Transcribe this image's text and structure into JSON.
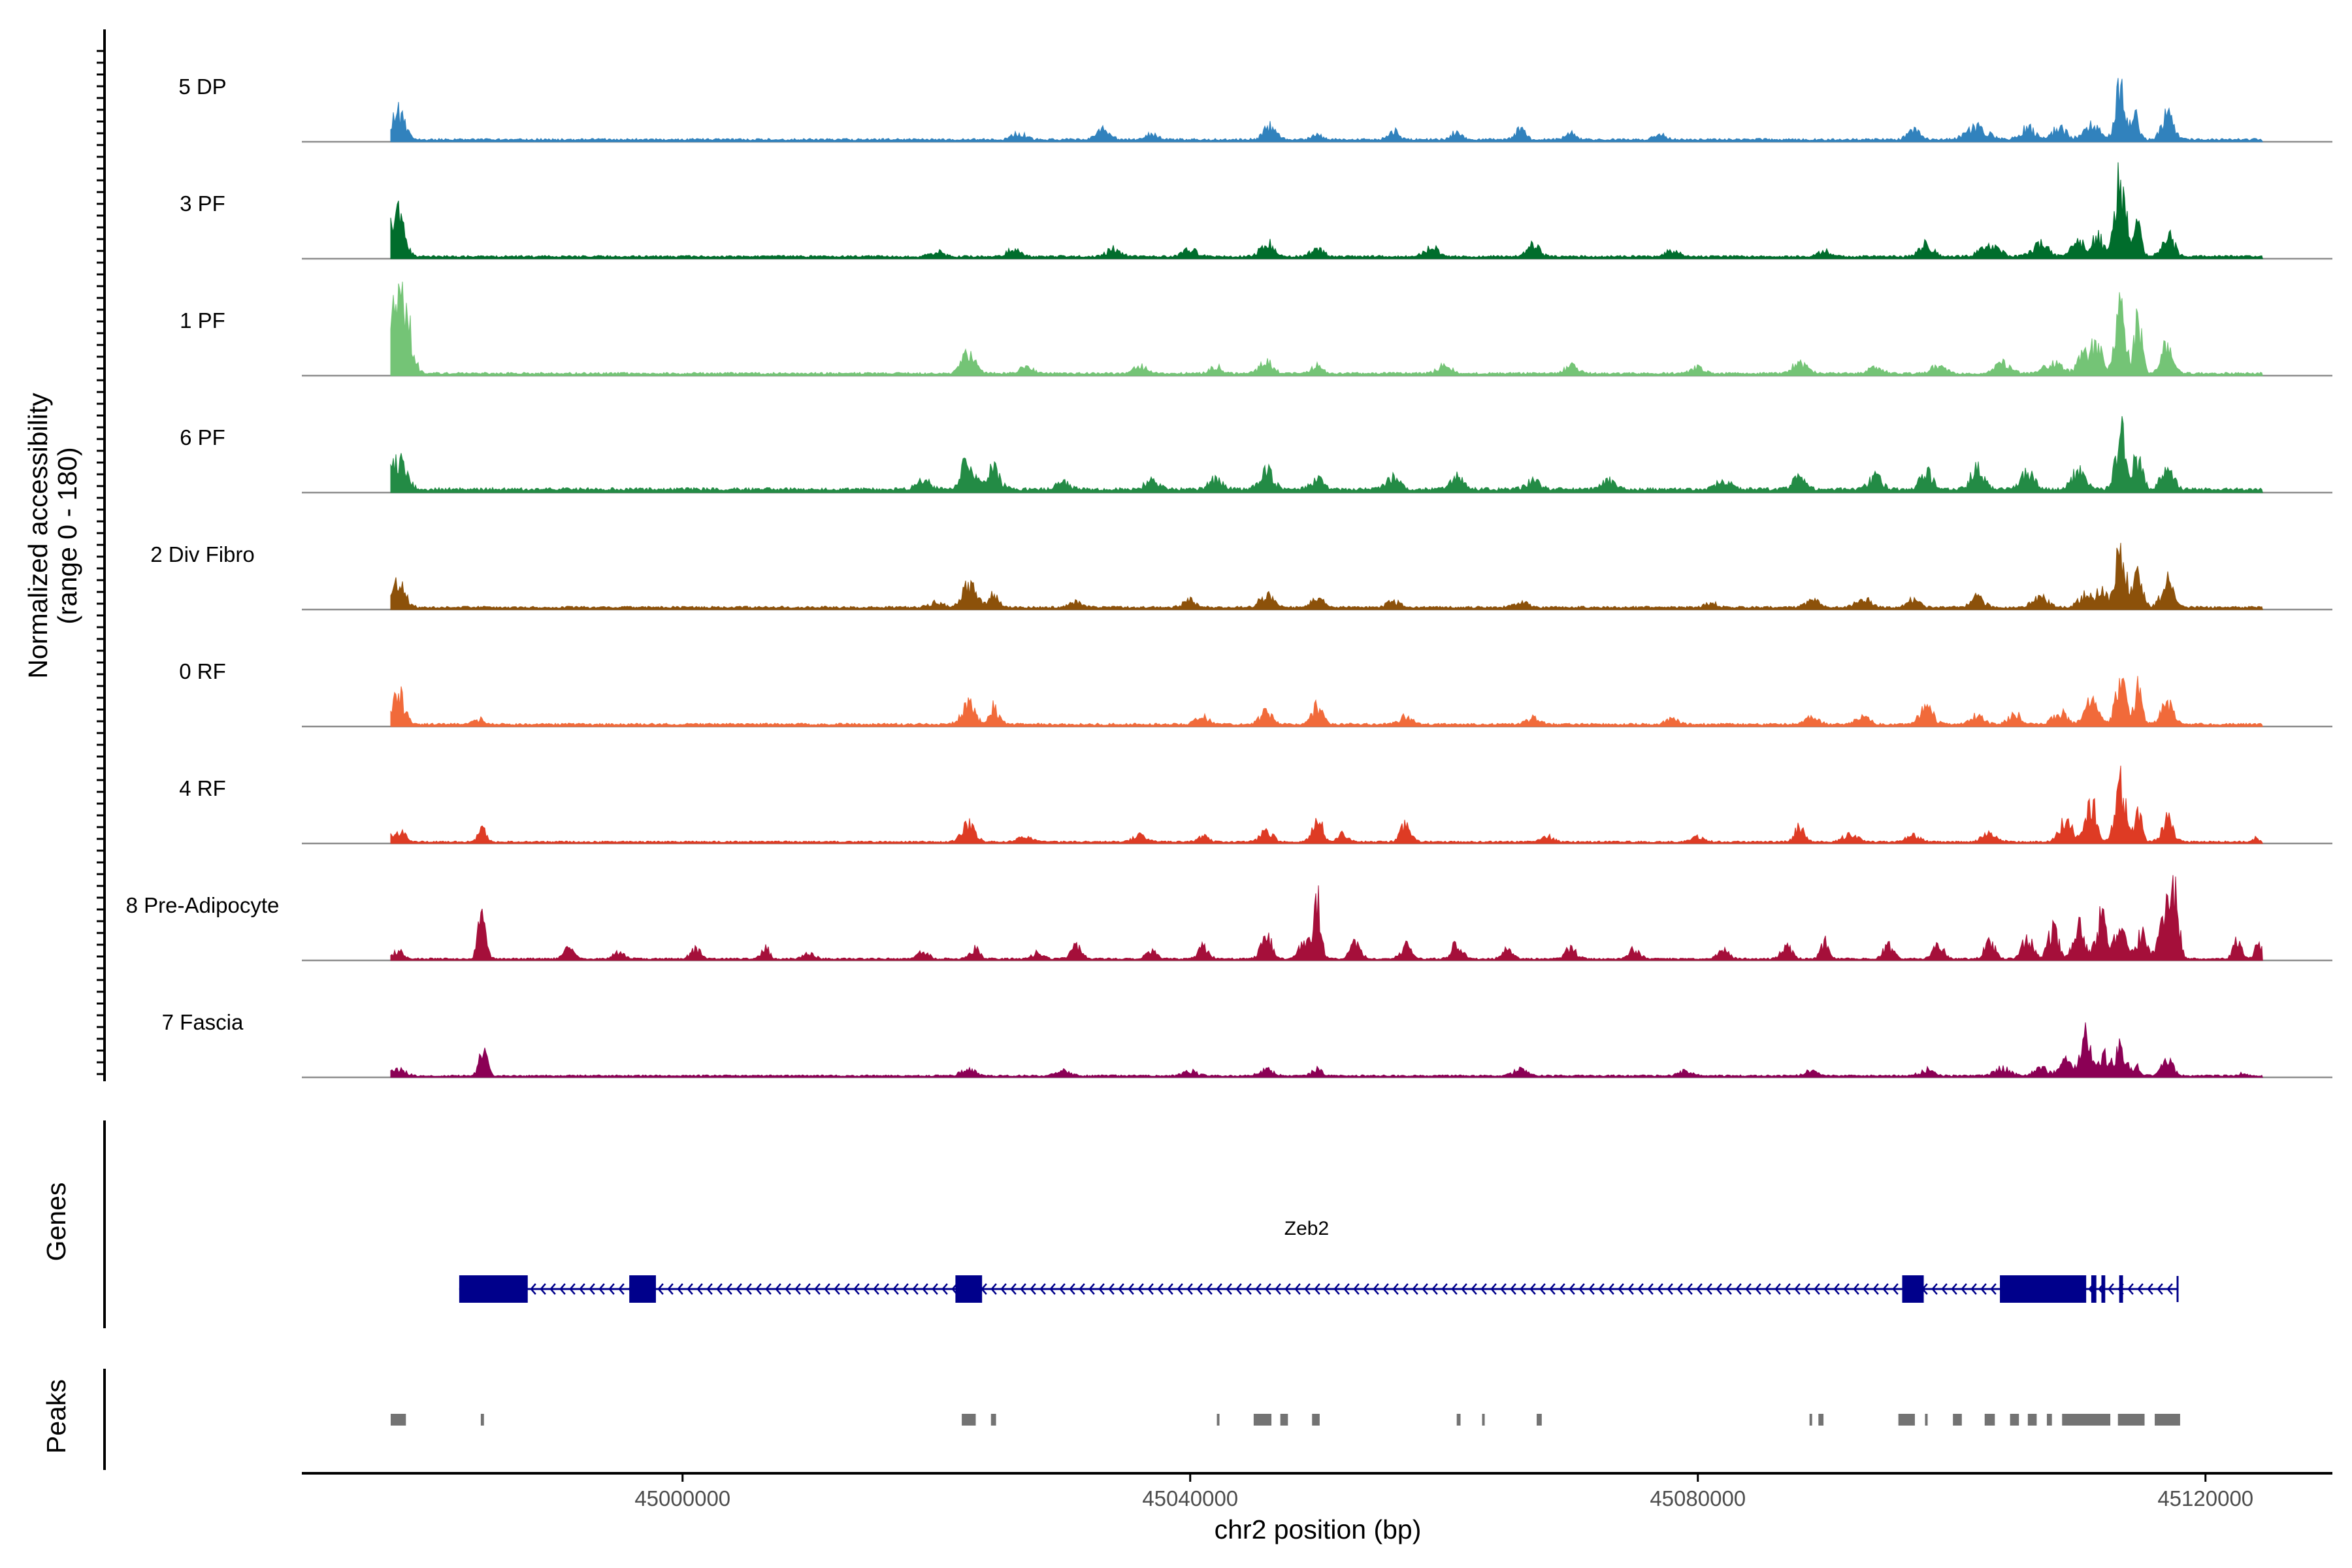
{
  "chart_data": {
    "type": "area",
    "title": "",
    "ylabel": "Normalized accessibility",
    "ylabel_range": "(range 0 - 180)",
    "xlabel": "chr2 position (bp)",
    "xlim": [
      44970000,
      45130000
    ],
    "xticks": [
      45000000,
      45040000,
      45080000,
      45120000
    ],
    "xtick_labels": [
      "45000000",
      "45040000",
      "45080000",
      "45120000"
    ],
    "track_range_end": 45124500,
    "tracks": [
      {
        "name": "5 DP",
        "color": "#3182BD",
        "base": 2,
        "peaks": [
          [
            44977600,
            22,
            500
          ],
          [
            45026500,
            5,
            500
          ],
          [
            45033200,
            8,
            500
          ],
          [
            45037000,
            5,
            400
          ],
          [
            45046300,
            11,
            500
          ],
          [
            45050000,
            5,
            400
          ],
          [
            45056000,
            7,
            400
          ],
          [
            45061000,
            6,
            400
          ],
          [
            45066000,
            8,
            400
          ],
          [
            45070000,
            5,
            400
          ],
          [
            45077000,
            5,
            400
          ],
          [
            45097000,
            7,
            500
          ],
          [
            45102000,
            10,
            800
          ],
          [
            45106000,
            9,
            600
          ],
          [
            45108500,
            10,
            500
          ],
          [
            45111000,
            12,
            600
          ],
          [
            45113300,
            40,
            400
          ],
          [
            45114500,
            18,
            300
          ],
          [
            45117000,
            20,
            450
          ]
        ]
      },
      {
        "name": "3 PF",
        "color": "#006D2C",
        "base": 2,
        "peaks": [
          [
            44977500,
            38,
            500
          ],
          [
            45020000,
            4,
            500
          ],
          [
            45026000,
            6,
            500
          ],
          [
            45034000,
            7,
            500
          ],
          [
            45040000,
            6,
            500
          ],
          [
            45046000,
            12,
            500
          ],
          [
            45050000,
            6,
            500
          ],
          [
            45059000,
            8,
            500
          ],
          [
            45067000,
            9,
            500
          ],
          [
            45078000,
            5,
            500
          ],
          [
            45090000,
            5,
            500
          ],
          [
            45098000,
            10,
            500
          ],
          [
            45103000,
            10,
            700
          ],
          [
            45107000,
            10,
            600
          ],
          [
            45110000,
            14,
            500
          ],
          [
            45111500,
            16,
            400
          ],
          [
            45113300,
            63,
            400
          ],
          [
            45114600,
            35,
            300
          ],
          [
            45117000,
            22,
            450
          ]
        ]
      },
      {
        "name": "1 PF",
        "color": "#74C476",
        "base": 2,
        "peaks": [
          [
            44977600,
            64,
            500
          ],
          [
            44978500,
            24,
            400
          ],
          [
            45022500,
            18,
            500
          ],
          [
            45027000,
            6,
            500
          ],
          [
            45036000,
            6,
            500
          ],
          [
            45042000,
            6,
            400
          ],
          [
            45046000,
            9,
            500
          ],
          [
            45050000,
            6,
            400
          ],
          [
            45060000,
            7,
            500
          ],
          [
            45070000,
            6,
            500
          ],
          [
            45080000,
            5,
            500
          ],
          [
            45088000,
            8,
            600
          ],
          [
            45094000,
            6,
            500
          ],
          [
            45099000,
            7,
            500
          ],
          [
            45104000,
            8,
            600
          ],
          [
            45108000,
            10,
            600
          ],
          [
            45110500,
            16,
            500
          ],
          [
            45111500,
            22,
            400
          ],
          [
            45113300,
            50,
            400
          ],
          [
            45114700,
            42,
            300
          ],
          [
            45117000,
            24,
            450
          ]
        ]
      },
      {
        "name": "6 PF",
        "color": "#238B45",
        "base": 3,
        "peaks": [
          [
            44977600,
            22,
            600
          ],
          [
            45019000,
            8,
            500
          ],
          [
            45022500,
            24,
            500
          ],
          [
            45024500,
            16,
            500
          ],
          [
            45030000,
            6,
            500
          ],
          [
            45037000,
            8,
            500
          ],
          [
            45042000,
            8,
            500
          ],
          [
            45046000,
            16,
            500
          ],
          [
            45050000,
            8,
            500
          ],
          [
            45056000,
            10,
            500
          ],
          [
            45061000,
            10,
            500
          ],
          [
            45067000,
            8,
            500
          ],
          [
            45073000,
            8,
            500
          ],
          [
            45082000,
            8,
            500
          ],
          [
            45088000,
            9,
            500
          ],
          [
            45094000,
            10,
            500
          ],
          [
            45098000,
            14,
            500
          ],
          [
            45102000,
            16,
            500
          ],
          [
            45106000,
            14,
            500
          ],
          [
            45110000,
            16,
            500
          ],
          [
            45113300,
            45,
            400
          ],
          [
            45114600,
            24,
            400
          ],
          [
            45117000,
            20,
            450
          ]
        ]
      },
      {
        "name": "2 Div Fibro",
        "color": "#8C510A",
        "base": 2,
        "peaks": [
          [
            44977600,
            20,
            500
          ],
          [
            45020000,
            4,
            500
          ],
          [
            45022600,
            20,
            500
          ],
          [
            45024500,
            10,
            400
          ],
          [
            45031000,
            4,
            500
          ],
          [
            45040000,
            6,
            500
          ],
          [
            45046000,
            10,
            500
          ],
          [
            45050000,
            10,
            400
          ],
          [
            45056000,
            5,
            500
          ],
          [
            45066000,
            5,
            500
          ],
          [
            45081000,
            4,
            500
          ],
          [
            45089000,
            6,
            500
          ],
          [
            45093000,
            8,
            500
          ],
          [
            45097000,
            6,
            500
          ],
          [
            45102000,
            8,
            500
          ],
          [
            45107000,
            8,
            600
          ],
          [
            45110500,
            10,
            500
          ],
          [
            45111800,
            14,
            400
          ],
          [
            45113300,
            45,
            400
          ],
          [
            45114600,
            24,
            400
          ],
          [
            45117000,
            22,
            450
          ]
        ]
      },
      {
        "name": "0 RF",
        "color": "#F16A3A",
        "base": 2,
        "peaks": [
          [
            44977600,
            24,
            500
          ],
          [
            44984000,
            4,
            400
          ],
          [
            45022500,
            16,
            500
          ],
          [
            45024500,
            14,
            400
          ],
          [
            45041000,
            6,
            500
          ],
          [
            45046000,
            10,
            500
          ],
          [
            45050000,
            14,
            400
          ],
          [
            45057000,
            6,
            500
          ],
          [
            45067000,
            5,
            500
          ],
          [
            45078000,
            4,
            500
          ],
          [
            45089000,
            6,
            500
          ],
          [
            45093000,
            6,
            500
          ],
          [
            45098000,
            14,
            500
          ],
          [
            45102000,
            7,
            500
          ],
          [
            45105000,
            8,
            500
          ],
          [
            45108500,
            10,
            500
          ],
          [
            45111000,
            18,
            500
          ],
          [
            45113300,
            34,
            400
          ],
          [
            45114700,
            34,
            300
          ],
          [
            45117000,
            18,
            450
          ]
        ]
      },
      {
        "name": "4 RF",
        "color": "#DE3B24",
        "base": 1.5,
        "peaks": [
          [
            44977600,
            10,
            500
          ],
          [
            44984200,
            10,
            300
          ],
          [
            45022500,
            14,
            500
          ],
          [
            45027000,
            5,
            500
          ],
          [
            45036000,
            5,
            500
          ],
          [
            45041000,
            5,
            400
          ],
          [
            45046000,
            8,
            500
          ],
          [
            45050000,
            20,
            400
          ],
          [
            45052000,
            6,
            400
          ],
          [
            45057000,
            14,
            400
          ],
          [
            45068000,
            5,
            500
          ],
          [
            45080000,
            4,
            500
          ],
          [
            45088000,
            12,
            400
          ],
          [
            45092000,
            7,
            500
          ],
          [
            45097000,
            6,
            500
          ],
          [
            45103000,
            6,
            600
          ],
          [
            45109000,
            18,
            500
          ],
          [
            45111000,
            32,
            400
          ],
          [
            45113300,
            45,
            400
          ],
          [
            45114700,
            22,
            300
          ],
          [
            45117000,
            18,
            450
          ],
          [
            45124000,
            3,
            300
          ]
        ]
      },
      {
        "name": "8 Pre-Adipocyte",
        "color": "#A50F3A",
        "base": 1.5,
        "peaks": [
          [
            44977600,
            6,
            400
          ],
          [
            44984200,
            36,
            300
          ],
          [
            44991000,
            8,
            400
          ],
          [
            44995000,
            6,
            400
          ],
          [
            45001000,
            8,
            400
          ],
          [
            45006500,
            10,
            300
          ],
          [
            45010000,
            5,
            400
          ],
          [
            45019000,
            6,
            400
          ],
          [
            45023000,
            8,
            400
          ],
          [
            45028000,
            5,
            400
          ],
          [
            45031000,
            10,
            400
          ],
          [
            45037000,
            8,
            400
          ],
          [
            45041000,
            10,
            400
          ],
          [
            45046000,
            20,
            400
          ],
          [
            45049000,
            14,
            400
          ],
          [
            45050000,
            45,
            300
          ],
          [
            45053000,
            12,
            400
          ],
          [
            45057000,
            10,
            400
          ],
          [
            45061000,
            12,
            400
          ],
          [
            45065000,
            8,
            400
          ],
          [
            45070000,
            10,
            400
          ],
          [
            45075000,
            8,
            400
          ],
          [
            45082000,
            8,
            400
          ],
          [
            45087000,
            10,
            400
          ],
          [
            45090000,
            14,
            300
          ],
          [
            45095000,
            10,
            400
          ],
          [
            45099000,
            12,
            400
          ],
          [
            45103000,
            14,
            400
          ],
          [
            45106000,
            18,
            400
          ],
          [
            45108000,
            24,
            400
          ],
          [
            45110000,
            28,
            400
          ],
          [
            45111800,
            34,
            400
          ],
          [
            45113300,
            28,
            400
          ],
          [
            45115000,
            22,
            400
          ],
          [
            45116800,
            36,
            400
          ],
          [
            45117600,
            55,
            300
          ],
          [
            45122500,
            16,
            300
          ],
          [
            45124200,
            12,
            300
          ]
        ]
      },
      {
        "name": "7 Fascia",
        "color": "#8B0055",
        "base": 1.5,
        "peaks": [
          [
            44977600,
            6,
            500
          ],
          [
            44984300,
            24,
            300
          ],
          [
            45022500,
            6,
            500
          ],
          [
            45030000,
            4,
            500
          ],
          [
            45040000,
            4,
            500
          ],
          [
            45046000,
            5,
            500
          ],
          [
            45050000,
            5,
            400
          ],
          [
            45066000,
            5,
            500
          ],
          [
            45079000,
            4,
            500
          ],
          [
            45089000,
            4,
            500
          ],
          [
            45098000,
            5,
            500
          ],
          [
            45104000,
            6,
            600
          ],
          [
            45107000,
            8,
            500
          ],
          [
            45109000,
            12,
            500
          ],
          [
            45110500,
            34,
            400
          ],
          [
            45112000,
            16,
            400
          ],
          [
            45113300,
            24,
            400
          ],
          [
            45114600,
            8,
            300
          ],
          [
            45117000,
            12,
            450
          ],
          [
            45123000,
            2,
            300
          ]
        ]
      }
    ],
    "genes_label": "Genes",
    "gene": {
      "name": "Zeb2",
      "color": "#00008B",
      "strand": "-",
      "start": 44982400,
      "end": 45117800,
      "exons": [
        [
          44982400,
          44987800
        ],
        [
          44995800,
          44997900
        ],
        [
          45021500,
          45023600
        ],
        [
          45096100,
          45097800
        ],
        [
          45103800,
          45110600
        ],
        [
          45111000,
          45111400
        ],
        [
          45111800,
          45112100
        ],
        [
          45113200,
          45113500
        ]
      ]
    },
    "peaks_label": "Peaks",
    "peaks_color": "#737373",
    "peak_regions": [
      [
        44977000,
        44978200
      ],
      [
        44984100,
        44984350
      ],
      [
        45022000,
        45023100
      ],
      [
        45024300,
        45024700
      ],
      [
        45042100,
        45042300
      ],
      [
        45045000,
        45046400
      ],
      [
        45047100,
        45047700
      ],
      [
        45049600,
        45050200
      ],
      [
        45061000,
        45061300
      ],
      [
        45063000,
        45063150
      ],
      [
        45067300,
        45067700
      ],
      [
        45088800,
        45089000
      ],
      [
        45089500,
        45089900
      ],
      [
        45095800,
        45097100
      ],
      [
        45097900,
        45098100
      ],
      [
        45100100,
        45100800
      ],
      [
        45102600,
        45103400
      ],
      [
        45104600,
        45105300
      ],
      [
        45106000,
        45106700
      ],
      [
        45107500,
        45107900
      ],
      [
        45108700,
        45112500
      ],
      [
        45113100,
        45115200
      ],
      [
        45116000,
        45118000
      ]
    ]
  }
}
